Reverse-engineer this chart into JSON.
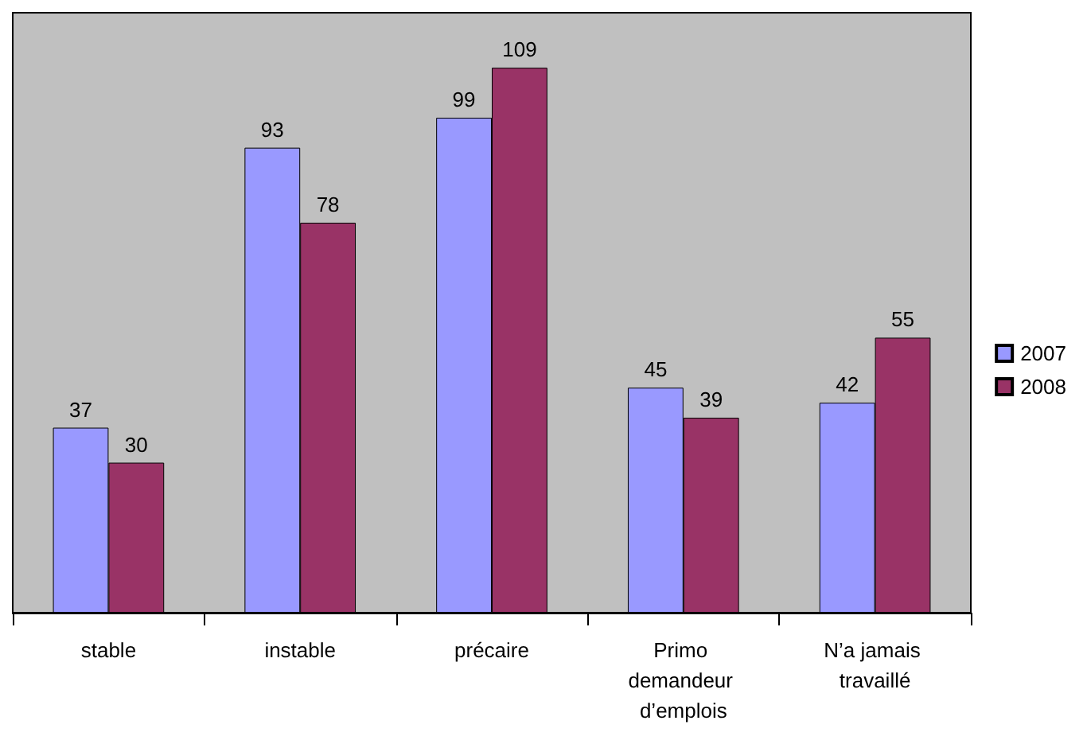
{
  "chart_data": {
    "type": "bar",
    "categories": [
      "stable",
      "instable",
      "précaire",
      "Primo demandeur d’emplois",
      "N’a jamais travaillé"
    ],
    "series": [
      {
        "name": "2007",
        "color": "#9999ff",
        "values": [
          37,
          93,
          99,
          45,
          42
        ]
      },
      {
        "name": "2008",
        "color": "#993366",
        "values": [
          30,
          78,
          109,
          39,
          55
        ]
      }
    ],
    "ylim": [
      0,
      120
    ],
    "data_labels": true,
    "legend": "right",
    "tick_labels": "x"
  }
}
